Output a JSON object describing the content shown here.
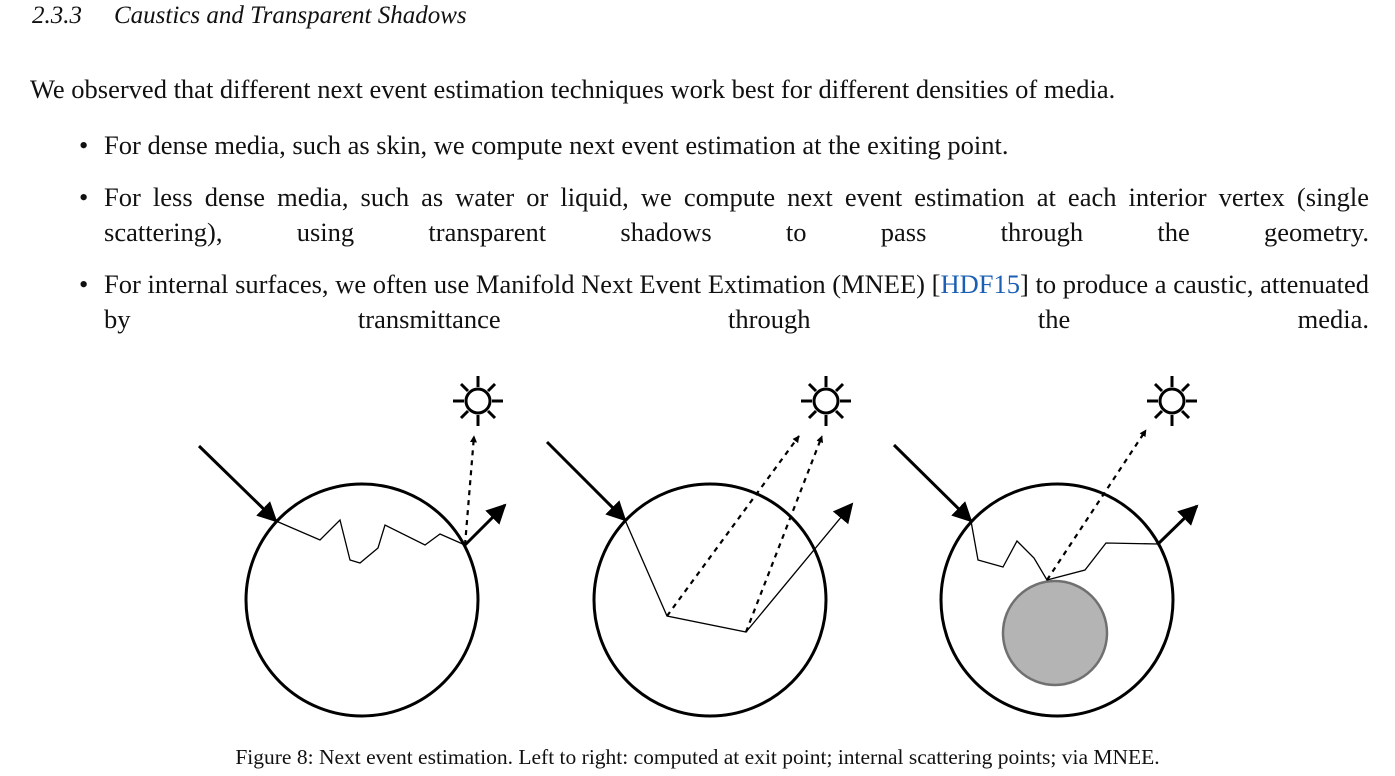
{
  "section": {
    "number": "2.3.3",
    "title": "Caustics and Transparent Shadows"
  },
  "intro": "We observed that different next event estimation techniques work best for different densities of media.",
  "bullets": [
    {
      "text": "For dense media, such as skin, we compute next event estimation at the exiting point."
    },
    {
      "text": "For less dense media, such as water or liquid, we compute next event estimation at each interior vertex (single scattering), using transparent shadows to pass through the geometry."
    },
    {
      "pre": "For internal surfaces, we often use Manifold Next Event Extimation (MNEE) [",
      "cite": "HDF15",
      "post": "] to produce a caustic, attenuated by transmittance through the media."
    }
  ],
  "figure": {
    "caption": "Figure 8: Next event estimation. Left to right: computed at exit point; internal scattering points; via MNEE.",
    "panels": [
      {
        "name": "exit-point",
        "icons": [
          "sun-icon",
          "incoming-ray-arrow",
          "outgoing-ray-arrow",
          "shadow-ray"
        ]
      },
      {
        "name": "internal-scattering",
        "icons": [
          "sun-icon",
          "incoming-ray-arrow",
          "outgoing-ray-arrow",
          "shadow-ray"
        ]
      },
      {
        "name": "mnee",
        "icons": [
          "sun-icon",
          "incoming-ray-arrow",
          "outgoing-ray-arrow",
          "shadow-ray"
        ],
        "inner_sphere_color": "#b4b4b4"
      }
    ],
    "colors": {
      "link": "#1a5fb4",
      "stroke": "#000000",
      "inner_fill": "#b4b4b4",
      "inner_stroke": "#707070"
    }
  }
}
